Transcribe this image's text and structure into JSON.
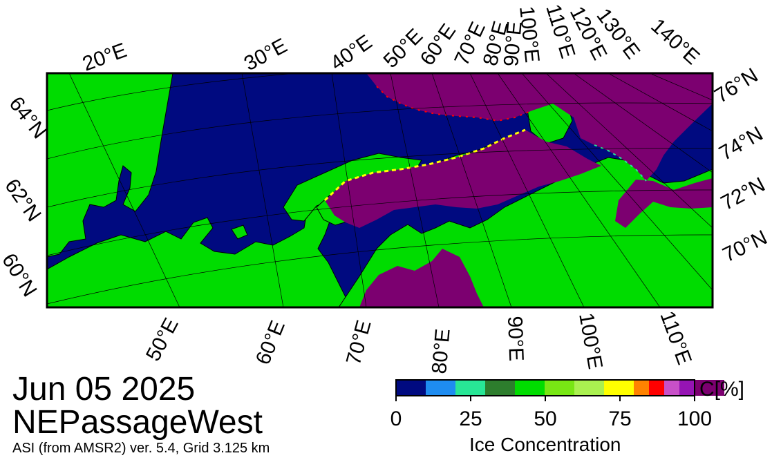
{
  "header": {
    "date": "Jun 05 2025",
    "region": "NEPassageWest",
    "source": "ASI (from AMSR2) ver. 5.4,  Grid 3.125 km"
  },
  "map": {
    "top_lon_labels": [
      "20°E",
      "30°E",
      "40°E",
      "50°E",
      "60°E",
      "70°E",
      "80°E",
      "90°E",
      "100°E",
      "110°E",
      "120°E",
      "130°E",
      "140°E"
    ],
    "bottom_lon_labels": [
      "50°E",
      "60°E",
      "70°E",
      "80°E",
      "90°E",
      "100°E",
      "110°E"
    ],
    "left_lat_labels": [
      "64°N",
      "62°N",
      "60°N"
    ],
    "right_lat_labels": [
      "76°N",
      "74°N",
      "72°N",
      "70°N"
    ],
    "colors": {
      "ocean": "#000a80",
      "land": "#00dc00",
      "ice_high": "#7c0070",
      "coast": "#000000"
    }
  },
  "colorbar": {
    "title": "Ice Concentration",
    "unit": "C[%]",
    "ticks": [
      "0",
      "25",
      "50",
      "75",
      "100"
    ],
    "colors": [
      "#000a80",
      "#1e8cf0",
      "#28e696",
      "#2d7d2d",
      "#00dc00",
      "#78e614",
      "#aaf050",
      "#ffff00",
      "#ff8200",
      "#ff0000",
      "#c850c8",
      "#9614b4",
      "#7c0070"
    ]
  }
}
